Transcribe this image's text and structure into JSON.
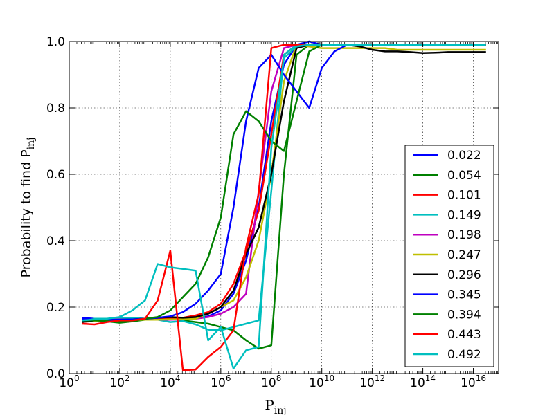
{
  "chart_data": {
    "type": "line",
    "title": "",
    "xlabel": "P",
    "xlabel_sub": "inj",
    "ylabel": "Probability to find P",
    "ylabel_sub": "inj",
    "xscale": "log",
    "xlim_exp": [
      0,
      17
    ],
    "ylim": [
      0,
      1
    ],
    "x_ticks": [
      {
        "base": "10",
        "exp": "0"
      },
      {
        "base": "10",
        "exp": "2"
      },
      {
        "base": "10",
        "exp": "4"
      },
      {
        "base": "10",
        "exp": "6"
      },
      {
        "base": "10",
        "exp": "8"
      },
      {
        "base": "10",
        "exp": "10"
      },
      {
        "base": "10",
        "exp": "12"
      },
      {
        "base": "10",
        "exp": "14"
      },
      {
        "base": "10",
        "exp": "16"
      }
    ],
    "y_ticks": [
      "0.0",
      "0.2",
      "0.4",
      "0.6",
      "0.8",
      "1.0"
    ],
    "grid": true,
    "legend_position": "lower-right",
    "x": [
      "1e0.5",
      "1e1",
      "1e1.5",
      "1e2",
      "1e2.5",
      "1e3",
      "1e3.5",
      "1e4",
      "1e4.5",
      "1e5",
      "1e5.5",
      "1e6",
      "1e6.5",
      "1e7",
      "1e7.5",
      "1e8",
      "1e8.5",
      "1e9",
      "1e9.5",
      "1e10",
      "1e10.5",
      "1e11",
      "1e11.5",
      "1e12",
      "1e12.5",
      "1e13",
      "1e13.5",
      "1e14",
      "1e14.5",
      "1e15",
      "1e15.5",
      "1e16",
      "1e16.5"
    ],
    "series": [
      {
        "name": "0.022",
        "color": "#0000ff",
        "values": [
          0.168,
          0.165,
          0.162,
          0.162,
          0.163,
          0.164,
          0.163,
          0.165,
          0.168,
          0.168,
          0.172,
          0.19,
          0.24,
          0.34,
          0.5,
          0.76,
          0.93,
          0.99,
          1.0,
          0.99,
          0.99,
          0.99,
          0.99,
          0.99,
          0.99,
          0.99,
          0.99,
          0.99,
          0.99,
          0.99,
          0.99,
          0.99,
          0.99
        ]
      },
      {
        "name": "0.054",
        "color": "#008000",
        "values": [
          0.16,
          0.158,
          0.157,
          0.153,
          0.157,
          0.162,
          0.165,
          0.168,
          0.16,
          0.155,
          0.15,
          0.14,
          0.13,
          0.1,
          0.075,
          0.085,
          0.6,
          0.96,
          0.99,
          0.99,
          0.99,
          0.99,
          0.99,
          0.99,
          0.99,
          0.99,
          0.99,
          0.99,
          0.99,
          0.99,
          0.99,
          0.99,
          0.99
        ]
      },
      {
        "name": "0.101",
        "color": "#ff0000",
        "values": [
          0.155,
          0.158,
          0.16,
          0.162,
          0.162,
          0.162,
          0.163,
          0.165,
          0.168,
          0.175,
          0.185,
          0.21,
          0.27,
          0.37,
          0.49,
          0.72,
          0.96,
          0.99,
          0.99,
          0.99,
          0.99,
          0.99,
          0.99,
          0.99,
          0.99,
          0.99,
          0.99,
          0.99,
          0.99,
          0.99,
          0.99,
          0.99,
          0.99
        ]
      },
      {
        "name": "0.149",
        "color": "#00bfbf",
        "values": [
          0.16,
          0.165,
          0.165,
          0.167,
          0.168,
          0.165,
          0.162,
          0.155,
          0.158,
          0.148,
          0.132,
          0.13,
          0.14,
          0.15,
          0.16,
          0.55,
          0.96,
          0.99,
          0.99,
          0.99,
          0.99,
          0.99,
          0.99,
          0.99,
          0.99,
          0.99,
          0.99,
          0.99,
          0.99,
          0.99,
          0.99,
          0.99,
          0.99
        ]
      },
      {
        "name": "0.198",
        "color": "#bf00bf",
        "values": [
          0.158,
          0.16,
          0.162,
          0.163,
          0.162,
          0.162,
          0.162,
          0.162,
          0.163,
          0.165,
          0.17,
          0.18,
          0.2,
          0.24,
          0.55,
          0.85,
          0.98,
          0.99,
          0.99,
          0.99,
          0.99,
          0.99,
          0.99,
          0.99,
          0.99,
          0.99,
          0.99,
          0.99,
          0.99,
          0.99,
          0.99,
          0.99,
          0.99
        ]
      },
      {
        "name": "0.247",
        "color": "#bfbf00",
        "values": [
          0.157,
          0.158,
          0.16,
          0.162,
          0.162,
          0.162,
          0.162,
          0.163,
          0.163,
          0.165,
          0.18,
          0.2,
          0.22,
          0.29,
          0.4,
          0.6,
          0.88,
          0.99,
          0.985,
          0.98,
          0.98,
          0.98,
          0.98,
          0.98,
          0.98,
          0.975,
          0.975,
          0.975,
          0.975,
          0.975,
          0.975,
          0.975,
          0.975
        ]
      },
      {
        "name": "0.296",
        "color": "#000000",
        "values": [
          0.155,
          0.16,
          0.162,
          0.162,
          0.163,
          0.165,
          0.168,
          0.17,
          0.168,
          0.17,
          0.18,
          0.2,
          0.25,
          0.36,
          0.44,
          0.6,
          0.82,
          0.98,
          0.99,
          0.99,
          0.99,
          0.99,
          0.985,
          0.975,
          0.97,
          0.97,
          0.968,
          0.965,
          0.966,
          0.968,
          0.968,
          0.968,
          0.968
        ]
      },
      {
        "name": "0.345",
        "color": "#0000ff",
        "values": [
          0.165,
          0.163,
          0.162,
          0.162,
          0.163,
          0.165,
          0.168,
          0.172,
          0.185,
          0.21,
          0.25,
          0.3,
          0.5,
          0.76,
          0.92,
          0.96,
          0.9,
          0.85,
          0.8,
          0.92,
          0.97,
          0.99,
          0.99,
          0.99,
          0.99,
          0.99,
          0.99,
          0.99,
          0.99,
          0.99,
          0.99,
          0.99,
          0.99
        ]
      },
      {
        "name": "0.394",
        "color": "#008000",
        "values": [
          0.16,
          0.16,
          0.158,
          0.155,
          0.16,
          0.165,
          0.17,
          0.19,
          0.23,
          0.27,
          0.35,
          0.47,
          0.72,
          0.79,
          0.76,
          0.7,
          0.67,
          0.82,
          0.97,
          0.99,
          0.99,
          0.99,
          0.99,
          0.99,
          0.99,
          0.99,
          0.99,
          0.99,
          0.99,
          0.99,
          0.99,
          0.99,
          0.99
        ]
      },
      {
        "name": "0.443",
        "color": "#ff0000",
        "values": [
          0.15,
          0.148,
          0.155,
          0.16,
          0.16,
          0.165,
          0.22,
          0.37,
          0.01,
          0.012,
          0.05,
          0.08,
          0.13,
          0.38,
          0.54,
          0.98,
          0.99,
          0.99,
          0.99,
          0.99,
          0.99,
          0.99,
          0.99,
          0.99,
          0.99,
          0.99,
          0.99,
          0.99,
          0.99,
          0.99,
          0.99,
          0.99,
          0.99
        ]
      },
      {
        "name": "0.492",
        "color": "#00bfbf",
        "values": [
          0.16,
          0.163,
          0.165,
          0.17,
          0.19,
          0.22,
          0.33,
          0.32,
          0.315,
          0.31,
          0.1,
          0.14,
          0.015,
          0.07,
          0.08,
          0.68,
          0.95,
          0.985,
          0.99,
          0.99,
          0.99,
          0.99,
          0.99,
          0.99,
          0.99,
          0.99,
          0.99,
          0.99,
          0.99,
          0.99,
          0.99,
          0.99,
          0.99
        ]
      }
    ]
  }
}
